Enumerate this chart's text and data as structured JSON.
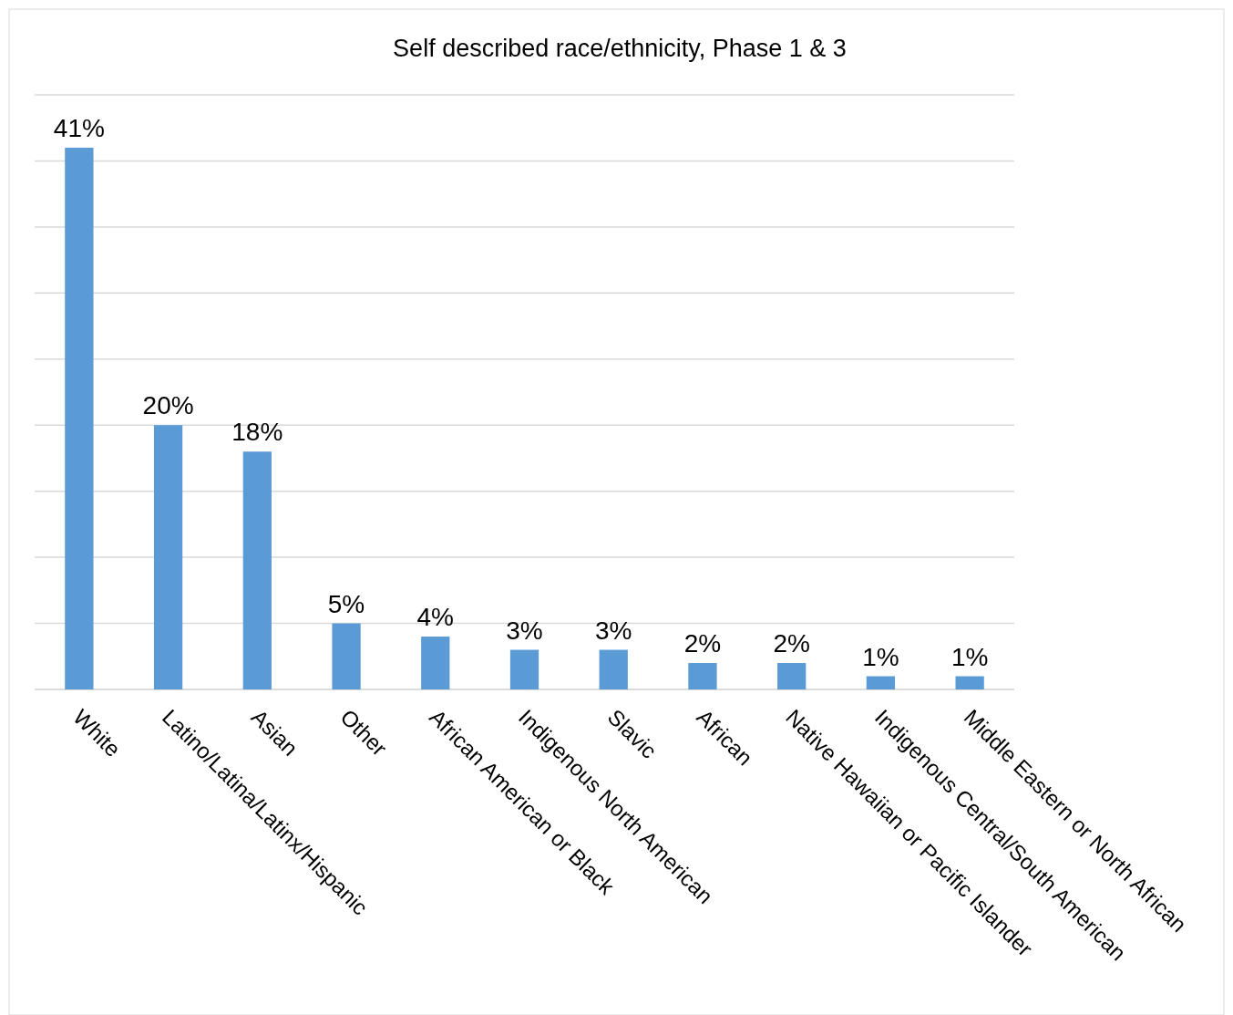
{
  "chart_data": {
    "type": "bar",
    "title": "Self described race/ethnicity, Phase 1 & 3",
    "categories": [
      "White",
      "Latino/Latina/Latinx/Hispanic",
      "Asian",
      "Other",
      "African American or Black",
      "Indigenous North American",
      "Slavic",
      "African",
      "Native Hawaiian or Pacific Islander",
      "Indigenous Central/South American",
      "Middle Eastern or North African"
    ],
    "values": [
      41,
      20,
      18,
      5,
      4,
      3,
      3,
      2,
      2,
      1,
      1
    ],
    "value_labels": [
      "41%",
      "20%",
      "18%",
      "5%",
      "4%",
      "3%",
      "3%",
      "2%",
      "2%",
      "1%",
      "1%"
    ],
    "color": "#5b9bd5",
    "ylim": [
      0,
      45
    ],
    "yticks": [
      {
        "value": 0,
        "label": null
      },
      {
        "value": 5,
        "label": null
      },
      {
        "value": 10,
        "label": null
      },
      {
        "value": 15,
        "label": null
      },
      {
        "value": 20,
        "label": null
      },
      {
        "value": 25,
        "label": null
      },
      {
        "value": 30,
        "label": null
      },
      {
        "value": 35,
        "label": null
      },
      {
        "value": 40,
        "label": null
      },
      {
        "value": 45,
        "label": null
      }
    ],
    "grid": "y",
    "tick_labels": "x"
  }
}
